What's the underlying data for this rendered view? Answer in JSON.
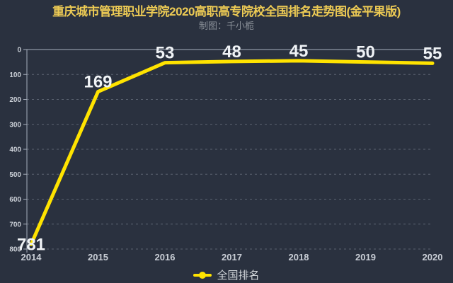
{
  "title": "重庆城市管理职业学院2020高职高专院校全国排名走势图(金平果版)",
  "subtitle": "制图：千小栀",
  "legend": {
    "label": "全国排名"
  },
  "colors": {
    "background": "#2a313f",
    "title_gold": "#ecca54",
    "subtitle_gray": "#8b9199",
    "line_yellow": "#ffe300",
    "data_label_white": "#f0f3f6",
    "axis_line": "#a7afbc",
    "grid_dashed": "#5c6472",
    "tick_label": "#ccd1d8",
    "x_label": "#c9ced6"
  },
  "chart_data": {
    "type": "line",
    "title": "重庆城市管理职业学院2020高职高专院校全国排名走势图(金平果版)",
    "subtitle": "制图：千小栀",
    "x": [
      "2014",
      "2015",
      "2016",
      "2017",
      "2018",
      "2019",
      "2020"
    ],
    "series": [
      {
        "name": "全国排名",
        "values": [
          781,
          169,
          53,
          48,
          45,
          50,
          55
        ]
      }
    ],
    "y_axis": {
      "label": "",
      "inverted": true,
      "min": 0,
      "max": 800,
      "ticks": [
        0,
        100,
        200,
        300,
        400,
        500,
        600,
        700,
        800
      ]
    },
    "x_axis": {
      "label": ""
    },
    "grid": "horizontal-dashed",
    "legend_position": "bottom-center",
    "data_labels_shown": true
  }
}
